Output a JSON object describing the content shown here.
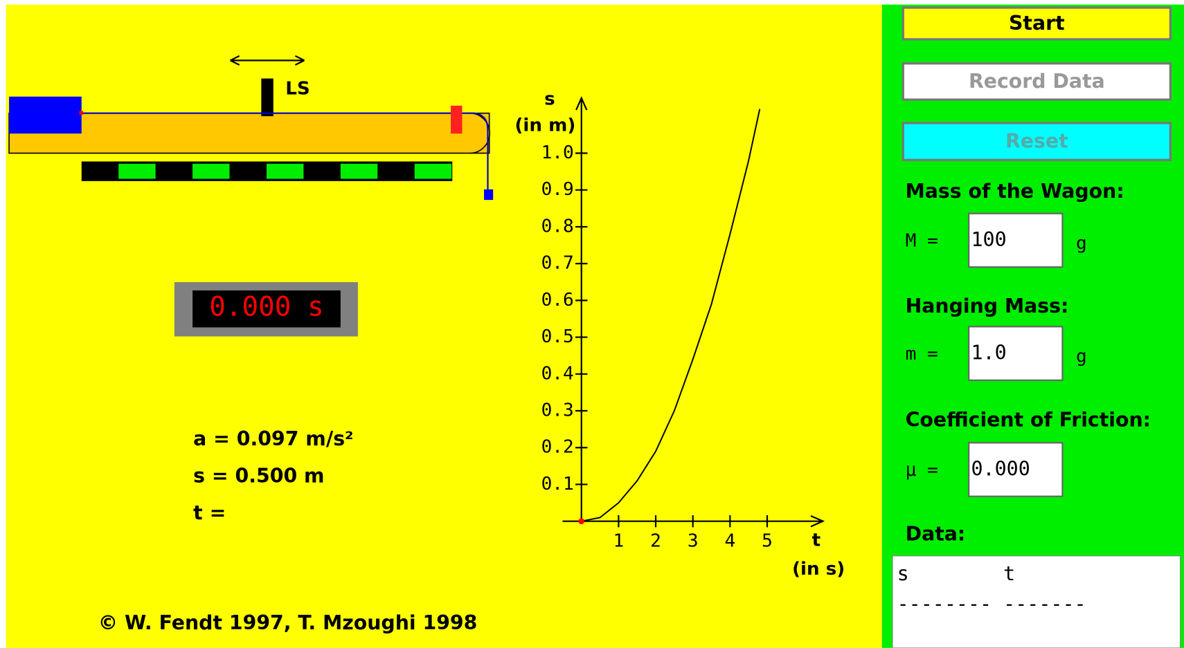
{
  "ls_label": "LS",
  "timer": "0.000 s",
  "readouts": [
    "a = 0.097 m/s²",
    "s = 0.500 m",
    "t ="
  ],
  "copyright": "©  W. Fendt 1997,  T. Mzoughi 1998",
  "graph": {
    "type": "line",
    "y_label": [
      "s",
      "(in m)"
    ],
    "x_label": [
      "t",
      "(in s)"
    ],
    "xlim": [
      0,
      6.5
    ],
    "ylim": [
      0,
      1.15
    ],
    "xticks": [
      1,
      2,
      3,
      4,
      5
    ],
    "yticks": [
      {
        "value": 0.1,
        "label": "0.1"
      },
      {
        "value": 0.2,
        "label": "0.2"
      },
      {
        "value": 0.3,
        "label": "0.3"
      },
      {
        "value": 0.4,
        "label": "0.4"
      },
      {
        "value": 0.5,
        "label": "0.5"
      },
      {
        "value": 0.6,
        "label": "0.6"
      },
      {
        "value": 0.7,
        "label": "0.7"
      },
      {
        "value": 0.8,
        "label": "0.8"
      },
      {
        "value": 0.9,
        "label": "0.9"
      },
      {
        "value": 1.0,
        "label": "1.0"
      }
    ],
    "x": [
      0,
      0.5,
      1,
      1.5,
      2,
      2.5,
      3,
      3.5,
      4,
      4.5,
      4.8
    ],
    "values": [
      0,
      0.01,
      0.05,
      0.11,
      0.19,
      0.3,
      0.44,
      0.59,
      0.78,
      0.98,
      1.12
    ],
    "color": "#000000"
  },
  "panel": {
    "buttons": [
      "Start",
      "Record Data",
      "Reset"
    ],
    "fields": [
      {
        "heading": "Mass of the Wagon:",
        "label": "M =",
        "value": "100",
        "unit": "g"
      },
      {
        "heading": "Hanging Mass:",
        "label": "m =",
        "value": "1.0",
        "unit": "g"
      },
      {
        "heading": "Coefficient of Friction:",
        "label": "μ =",
        "value": "0.000",
        "unit": null
      }
    ],
    "data_heading": "Data:",
    "data_lines": [
      "s        t",
      "-------- -------"
    ]
  }
}
